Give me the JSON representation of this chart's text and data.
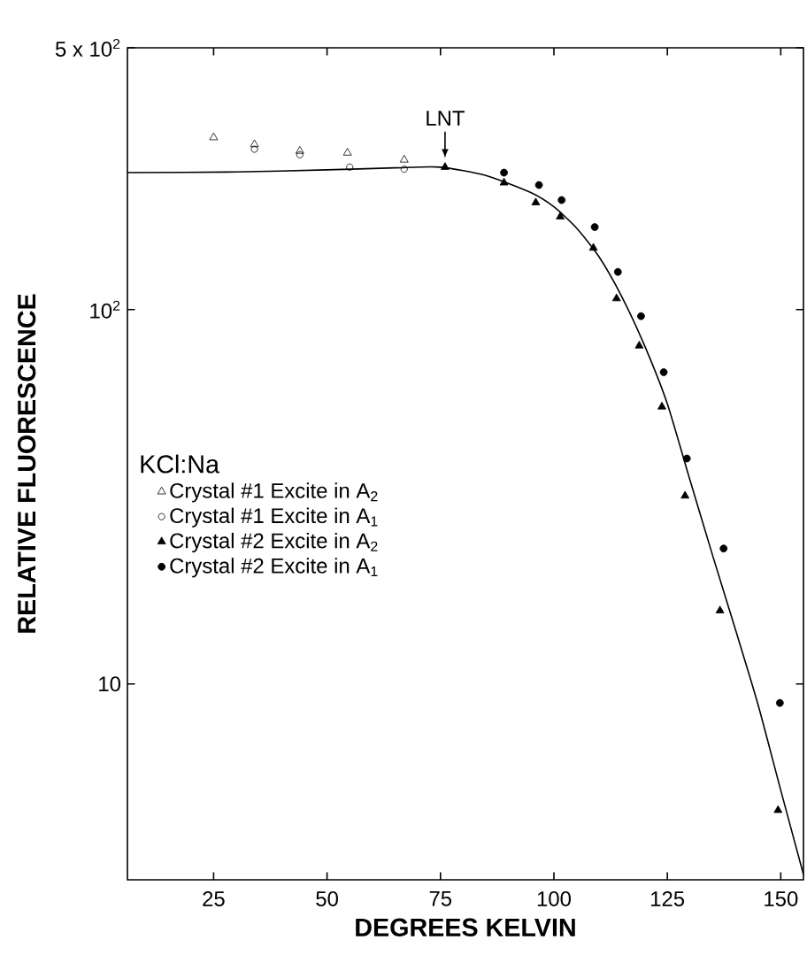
{
  "chart_data": {
    "type": "scatter",
    "xlabel": "DEGREES KELVIN",
    "ylabel": "RELATIVE FLUORESCENCE",
    "legend_title": "KCl:Na",
    "log": "y",
    "grid": false,
    "legend": "left",
    "xlim": [
      6,
      155
    ],
    "ylim": [
      3,
      500
    ],
    "xticks": [
      25,
      50,
      75,
      100,
      125,
      150
    ],
    "yticks": [
      {
        "value": 500,
        "label": "5 x 10$^{2}$"
      },
      {
        "value": 100,
        "label": "10$^{2}$"
      },
      10
    ],
    "annotations": [
      {
        "text": "LNT",
        "x": 76,
        "y": 240
      }
    ],
    "series": [
      {
        "name": "Crystal  #1  Excite in A$_{2}$",
        "color": "#000000",
        "marker": "triangle",
        "x": [
          25,
          34,
          44,
          54.5,
          67
        ],
        "values": [
          288,
          276,
          265,
          262,
          251
        ]
      },
      {
        "name": "Crystal  #1  Excite in A$_{1}$",
        "color": "#000000",
        "marker": "circle",
        "x": [
          34,
          44,
          55,
          67
        ],
        "values": [
          268,
          259,
          240,
          237
        ]
      },
      {
        "name": "Crystal  #2  Excite in A$_{2}$",
        "color": "#000000",
        "marker": "triangle",
        "x": [
          76,
          89,
          96,
          101.4,
          108.7,
          113.8,
          118.8,
          123.8,
          128.9,
          136.6,
          149.4
        ],
        "values": [
          240,
          218,
          193,
          177,
          146,
          107,
          80,
          55,
          31.8,
          15.7,
          4.6
        ]
      },
      {
        "name": "Crystal  #2  Excite in A$_{1}$",
        "color": "#000000",
        "marker": "circle",
        "x": [
          89,
          96.7,
          101.7,
          109,
          114.1,
          119.2,
          124.2,
          129.3,
          137.4,
          149.8
        ],
        "values": [
          232,
          215,
          196,
          166,
          126,
          96,
          68,
          40,
          23,
          8.9
        ]
      },
      {
        "type": "line",
        "color": "#000000",
        "marker": "none",
        "line_style": "solid",
        "x": [
          6,
          30,
          50,
          65,
          75,
          85,
          95,
          100,
          105,
          110,
          115,
          120,
          125,
          130,
          135,
          140,
          145,
          150,
          155
        ],
        "values": [
          232,
          233,
          236,
          239,
          240,
          228,
          205,
          188,
          165,
          138,
          108,
          80,
          56,
          35,
          22,
          14,
          8.8,
          5.2,
          3.1
        ]
      }
    ]
  }
}
